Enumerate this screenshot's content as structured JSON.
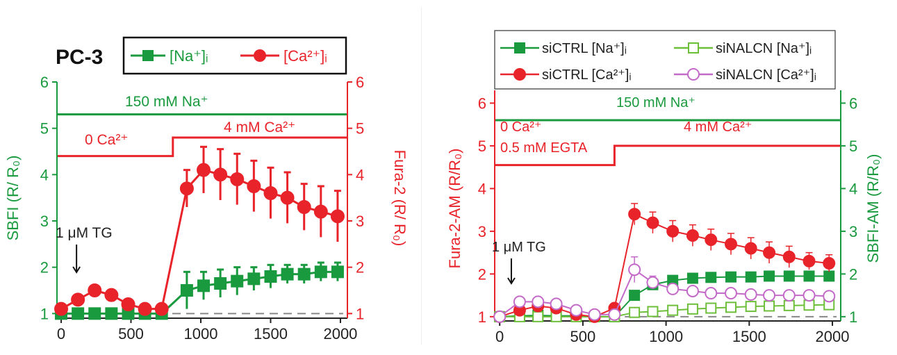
{
  "colors": {
    "green": "#1a9a3e",
    "red": "#e8232a",
    "pink": "#c36ac8",
    "light_green": "#6dbf3a",
    "axis": "#222222",
    "dash": "#888888"
  },
  "chart_data": [
    {
      "type": "line",
      "panel_label": "PC-3",
      "legend": {
        "na": "[Na⁺]ᵢ",
        "ca": "[Ca²⁺]ᵢ",
        "placement": "top"
      },
      "left_axis": {
        "label": "SBFI (R/ R₀)",
        "ylim": [
          0.9,
          6
        ],
        "ticks": [
          1,
          2,
          3,
          4,
          5,
          6
        ],
        "tick_labels": [
          "1",
          "2",
          "3",
          "4",
          "5",
          "6"
        ]
      },
      "right_axis": {
        "label": "Fura-2 (R/ R₀)",
        "ylim": [
          0.9,
          6
        ],
        "ticks": [
          1,
          2,
          3,
          4,
          5,
          6
        ],
        "tick_labels": [
          "1",
          "2",
          "3",
          "4",
          "5",
          "6"
        ]
      },
      "x_axis": {
        "xlim": [
          -30,
          2050
        ],
        "ticks": [
          0,
          500,
          1000,
          1500,
          2000
        ],
        "tick_labels": [
          "0",
          "500",
          "1000",
          "1500",
          "2000"
        ]
      },
      "annotations": {
        "na_bar": "150 mM Na⁺",
        "ca_low": "0 Ca²⁺",
        "ca_high": "4 mM Ca²⁺",
        "tg": "1 μM TG"
      },
      "protocol": {
        "na_level": 5.3,
        "ca_low_level": 4.4,
        "ca_high_level": 4.8,
        "ca_switch_x": 800,
        "tg_x": 110
      },
      "baseline": 1,
      "series": [
        {
          "name": "[Na⁺]ᵢ",
          "axis": "left",
          "marker": "square",
          "color_key": "green",
          "x": [
            0,
            120,
            240,
            360,
            480,
            600,
            720,
            900,
            1020,
            1140,
            1260,
            1380,
            1500,
            1620,
            1740,
            1860,
            1980
          ],
          "y": [
            1.0,
            1.0,
            1.0,
            1.0,
            1.0,
            1.0,
            1.0,
            1.5,
            1.6,
            1.65,
            1.7,
            1.75,
            1.8,
            1.85,
            1.85,
            1.9,
            1.9
          ],
          "err": [
            0.05,
            0.05,
            0.05,
            0.05,
            0.05,
            0.05,
            0.05,
            0.4,
            0.3,
            0.3,
            0.3,
            0.25,
            0.25,
            0.2,
            0.2,
            0.2,
            0.2
          ]
        },
        {
          "name": "[Ca²⁺]ᵢ",
          "axis": "right",
          "marker": "circle",
          "color_key": "red",
          "x": [
            0,
            120,
            240,
            360,
            480,
            600,
            720,
            900,
            1020,
            1140,
            1260,
            1380,
            1500,
            1620,
            1740,
            1860,
            1980
          ],
          "y": [
            1.1,
            1.3,
            1.5,
            1.4,
            1.2,
            1.1,
            1.1,
            3.7,
            4.1,
            4.0,
            3.9,
            3.75,
            3.6,
            3.5,
            3.3,
            3.2,
            3.1
          ],
          "err": [
            0.05,
            0.05,
            0.05,
            0.05,
            0.05,
            0.05,
            0.05,
            0.4,
            0.5,
            0.55,
            0.55,
            0.55,
            0.55,
            0.55,
            0.5,
            0.55,
            0.55
          ]
        }
      ]
    },
    {
      "type": "line",
      "legend": {
        "entries": [
          "siCTRL [Na⁺]ᵢ",
          "siNALCN [Na⁺]ᵢ",
          "siCTRL [Ca²⁺]ᵢ",
          "siNALCN [Ca²⁺]ᵢ"
        ],
        "placement": "top"
      },
      "left_axis": {
        "label": "Fura-2-AM (R/R₀)",
        "ylim": [
          0.9,
          6.3
        ],
        "ticks": [
          1,
          2,
          3,
          4,
          5,
          6
        ],
        "tick_labels": [
          "1",
          "2",
          "3",
          "4",
          "5",
          "6"
        ]
      },
      "right_axis": {
        "label": "SBFI-AM (R/R₀)",
        "ylim": [
          0.9,
          6.3
        ],
        "ticks": [
          1,
          2,
          3,
          4,
          5,
          6
        ],
        "tick_labels": [
          "1",
          "2",
          "3",
          "4",
          "5",
          "6"
        ]
      },
      "x_axis": {
        "xlim": [
          -30,
          2050
        ],
        "ticks": [
          0,
          500,
          1000,
          1500,
          2000
        ],
        "tick_labels": [
          "0",
          "500",
          "1000",
          "1500",
          "2000"
        ]
      },
      "annotations": {
        "na_bar": "150 mM Na⁺",
        "ca_low": "0 Ca²⁺",
        "egta": "0.5 mM EGTA",
        "ca_high": "4 mM Ca²⁺",
        "tg": "1 μM TG"
      },
      "protocol": {
        "na_level": 5.6,
        "ca_low_level": 4.55,
        "ca_high_level": 5.0,
        "ca_switch_x": 690,
        "tg_x": 70
      },
      "baseline": 1,
      "series": [
        {
          "name": "siCTRL [Na⁺]ᵢ",
          "axis": "right",
          "marker": "square",
          "fill": true,
          "color_key": "green",
          "x": [
            0,
            120,
            230,
            340,
            460,
            570,
            690,
            810,
            920,
            1040,
            1160,
            1270,
            1390,
            1510,
            1620,
            1740,
            1860,
            1980
          ],
          "y": [
            1.0,
            1.02,
            1.03,
            1.02,
            1.02,
            1.0,
            1.0,
            1.5,
            1.75,
            1.85,
            1.9,
            1.92,
            1.93,
            1.93,
            1.95,
            1.95,
            1.95,
            1.95
          ],
          "err": [
            0.03,
            0.03,
            0.03,
            0.03,
            0.03,
            0.03,
            0.03,
            0.05,
            0.05,
            0.05,
            0.05,
            0.05,
            0.05,
            0.05,
            0.05,
            0.05,
            0.05,
            0.05
          ]
        },
        {
          "name": "siNALCN [Na⁺]ᵢ",
          "axis": "right",
          "marker": "square",
          "fill": false,
          "color_key": "light_green",
          "x": [
            0,
            120,
            230,
            340,
            460,
            570,
            690,
            810,
            920,
            1040,
            1160,
            1270,
            1390,
            1510,
            1620,
            1740,
            1860,
            1980
          ],
          "y": [
            1.0,
            1.0,
            1.0,
            1.0,
            1.0,
            1.0,
            1.0,
            1.1,
            1.12,
            1.15,
            1.18,
            1.2,
            1.22,
            1.24,
            1.25,
            1.26,
            1.27,
            1.28
          ],
          "err": [
            0.03,
            0.03,
            0.03,
            0.03,
            0.03,
            0.03,
            0.03,
            0.04,
            0.04,
            0.05,
            0.05,
            0.05,
            0.05,
            0.05,
            0.05,
            0.05,
            0.05,
            0.05
          ]
        },
        {
          "name": "siCTRL [Ca²⁺]ᵢ",
          "axis": "left",
          "marker": "circle",
          "fill": true,
          "color_key": "red",
          "x": [
            0,
            120,
            230,
            340,
            460,
            570,
            690,
            810,
            920,
            1040,
            1160,
            1270,
            1390,
            1510,
            1620,
            1740,
            1860,
            1980
          ],
          "y": [
            1.0,
            1.15,
            1.25,
            1.2,
            1.05,
            1.0,
            1.2,
            3.4,
            3.2,
            3.0,
            2.9,
            2.8,
            2.7,
            2.6,
            2.5,
            2.4,
            2.3,
            2.25
          ],
          "err": [
            0.05,
            0.08,
            0.08,
            0.08,
            0.06,
            0.05,
            0.08,
            0.25,
            0.25,
            0.25,
            0.25,
            0.25,
            0.25,
            0.25,
            0.25,
            0.25,
            0.2,
            0.2
          ]
        },
        {
          "name": "siNALCN [Ca²⁺]ᵢ",
          "axis": "left",
          "marker": "circle",
          "fill": false,
          "color_key": "pink",
          "x": [
            0,
            120,
            230,
            340,
            460,
            570,
            690,
            810,
            920,
            1040,
            1160,
            1270,
            1390,
            1510,
            1620,
            1740,
            1860,
            1980
          ],
          "y": [
            1.0,
            1.35,
            1.35,
            1.3,
            1.15,
            1.05,
            1.05,
            2.1,
            1.8,
            1.65,
            1.6,
            1.55,
            1.55,
            1.52,
            1.5,
            1.5,
            1.5,
            1.48
          ],
          "err": [
            0.05,
            0.08,
            0.08,
            0.08,
            0.06,
            0.05,
            0.05,
            0.3,
            0.15,
            0.1,
            0.1,
            0.1,
            0.1,
            0.1,
            0.1,
            0.1,
            0.1,
            0.1
          ]
        }
      ]
    }
  ]
}
